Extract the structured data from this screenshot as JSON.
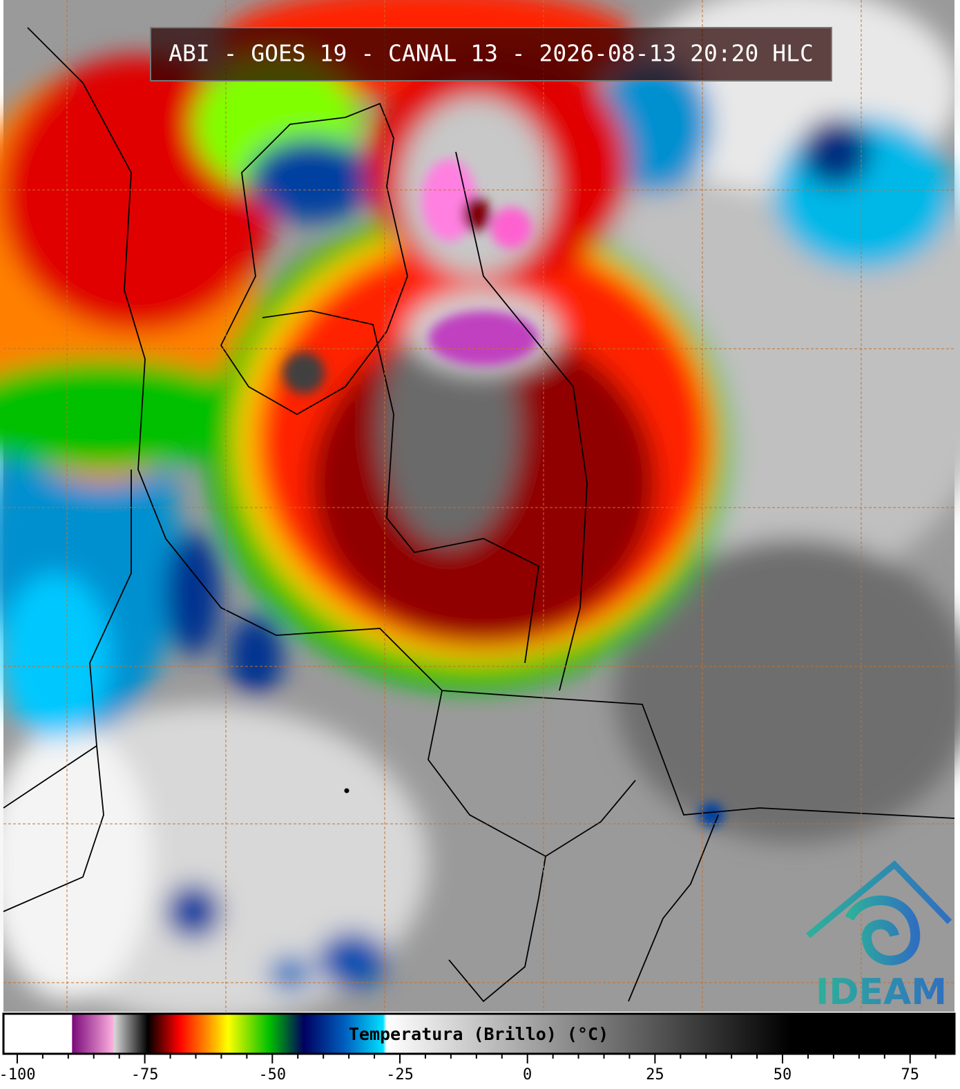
{
  "header": {
    "title": "ABI - GOES 19 - CANAL 13 - 2026-08-13 20:20 HLC"
  },
  "logo": {
    "text": "IDEAM"
  },
  "colorbar": {
    "label": "Temperatura (Brillo) (°C)",
    "range": [
      -102.7,
      83.7
    ],
    "ticks": [
      -100,
      -75,
      -50,
      -25,
      0,
      25,
      50,
      75
    ],
    "minor_step": 5,
    "colormap": [
      {
        "value": -102.7,
        "color": "#ffffff"
      },
      {
        "value": -89.3,
        "color": "#ffffff"
      },
      {
        "value": -89.2,
        "color": "#7a0a7a"
      },
      {
        "value": -81.1,
        "color": "#ffb0e0"
      },
      {
        "value": -81,
        "color": "#d8d8d8"
      },
      {
        "value": -74.4,
        "color": "#000000"
      },
      {
        "value": -68.2,
        "color": "#ff0000"
      },
      {
        "value": -62.8,
        "color": "#ff8c00"
      },
      {
        "value": -58.7,
        "color": "#ffff00"
      },
      {
        "value": -50.6,
        "color": "#00c000"
      },
      {
        "value": -43.8,
        "color": "#000060"
      },
      {
        "value": -35.7,
        "color": "#0060c0"
      },
      {
        "value": -28.3,
        "color": "#00e0ff"
      },
      {
        "value": -27.6,
        "color": "#ffffff"
      },
      {
        "value": 51.6,
        "color": "#000000"
      },
      {
        "value": 83.7,
        "color": "#000000"
      }
    ]
  }
}
